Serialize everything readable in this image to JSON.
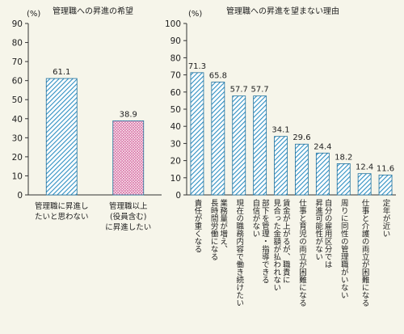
{
  "chart_data": [
    {
      "type": "bar",
      "title": "管理職への昇進の希望",
      "unit_label": "(%)",
      "ylim": [
        0,
        90
      ],
      "yticks": [
        0,
        10,
        20,
        30,
        40,
        50,
        60,
        70,
        80,
        90
      ],
      "grid": false,
      "categories": [
        "管理職に昇進したいと思わない",
        "管理職以上(役員含む)に昇進したい"
      ],
      "category_lines": [
        [
          "管理職に昇進し",
          "たいと思わない"
        ],
        [
          "管理職以上",
          "(役員含む)",
          "に昇進したい"
        ]
      ],
      "values": [
        61.1,
        38.9
      ],
      "value_labels": [
        "61.1",
        "38.9"
      ],
      "fills": [
        "hatch-blue",
        "hatch-pink"
      ]
    },
    {
      "type": "bar",
      "title": "管理職への昇進を望まない理由",
      "unit_label": "(%)",
      "ylim": [
        0,
        100
      ],
      "yticks": [
        0,
        10,
        20,
        30,
        40,
        50,
        60,
        70,
        80,
        90,
        100
      ],
      "grid": false,
      "categories": [
        "責任が重くなる",
        "業務量が増え、長時間労働になる",
        "現在の職務内容で働き続けたい",
        "部下を管理・指導できる自信がない",
        "賃金が上がるが、職責に見合った金額が払われない",
        "仕事と育児の両立が困難になる",
        "自分の雇用区分では昇進可能性がない",
        "周りに同性の管理職がいない",
        "仕事と介護の両立が困難になる",
        "定年が近い"
      ],
      "category_lines": [
        [
          "責任が重くなる"
        ],
        [
          "業務量が増え、",
          "長時間労働になる"
        ],
        [
          "現在の職務内容で働き続けたい"
        ],
        [
          "部下を管理・指導できる",
          "自信がない"
        ],
        [
          "賃金が上がるが、職責に",
          "見合った金額が払われない"
        ],
        [
          "仕事と育児の両立が困難になる"
        ],
        [
          "自分の雇用区分では",
          "昇進可能性がない"
        ],
        [
          "周りに同性の管理職がいない"
        ],
        [
          "仕事と介護の両立が困難になる"
        ],
        [
          "定年が近い"
        ]
      ],
      "values": [
        71.3,
        65.8,
        57.7,
        57.7,
        34.1,
        29.6,
        24.4,
        18.2,
        12.4,
        11.6
      ],
      "value_labels": [
        "71.3",
        "65.8",
        "57.7",
        "57.7",
        "34.1",
        "29.6",
        "24.4",
        "18.2",
        "12.4",
        "11.6"
      ],
      "fills": [
        "hatch-blue"
      ]
    }
  ],
  "colors": {
    "background": "#f6f5ea",
    "bar_stroke": "#1d6f9c",
    "hatch_blue": "#2e8fc2",
    "hatch_pink": "#d66aa0",
    "axis": "#333333"
  }
}
